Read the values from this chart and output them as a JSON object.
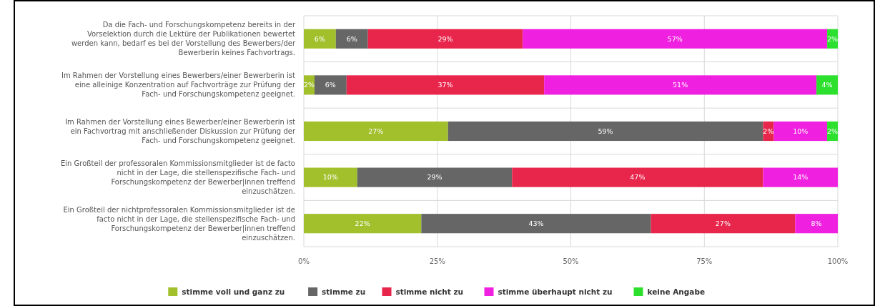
{
  "chart_data": {
    "type": "bar",
    "orientation": "horizontal",
    "stacked": true,
    "categories": [
      "Da die Fach- und Forschungskompetenz bereits in der Vorselektion durch die Lektüre der Publikationen bewertet werden kann, bedarf es bei der Vorstellung des Bewerbers/der Bewerberin keines Fachvortrags.",
      "Im Rahmen der Vorstellung eines Bewerbers/einer Bewerberin ist eine alleinige Konzentration auf Fachvorträge zur Prüfung der Fach- und Forschungskompetenz geeignet.",
      "Im Rahmen der Vorstellung eines Bewerber/einer Bewerberin ist ein Fachvortrag mit anschließender Diskussion zur Prüfung der Fach- und Forschungskompetenz geeignet.",
      "Ein Großteil der professoralen Kommissionsmitglieder ist de facto nicht in der Lage, die stellenspezifische Fach- und Forschungskompetenz der Bewerber|innen treffend einzuschätzen.",
      "Ein Großteil der nichtprofessoralen Kommissionsmitglieder ist de facto nicht in der Lage, die stellenspezifische Fach- und Forschungskompetenz der Bewerber|innen treffend einzuschätzen."
    ],
    "series": [
      {
        "name": "stimme voll und ganz zu",
        "color": "#a2c02c",
        "values": [
          6,
          2,
          27,
          10,
          22
        ],
        "value_labels": [
          "6%",
          "2%",
          "27%",
          "10%",
          "22%"
        ]
      },
      {
        "name": "stimme zu",
        "color": "#666666",
        "values": [
          6,
          6,
          59,
          29,
          43
        ],
        "value_labels": [
          "6%",
          "6%",
          "59%",
          "29%",
          "43%"
        ]
      },
      {
        "name": "stimme nicht zu",
        "color": "#e8254a",
        "values": [
          29,
          37,
          2,
          47,
          27
        ],
        "value_labels": [
          "29%",
          "37%",
          "2%",
          "47%",
          "27%"
        ]
      },
      {
        "name": "stimme überhaupt nicht zu",
        "color": "#f020e0",
        "values": [
          57,
          51,
          10,
          14,
          8
        ],
        "value_labels": [
          "57%",
          "51%",
          "10%",
          "14%",
          "8%"
        ]
      },
      {
        "name": "keine Angabe",
        "color": "#2ee02e",
        "values": [
          2,
          4,
          2,
          null,
          null
        ],
        "value_labels": [
          "2%",
          "4%",
          "2%",
          null,
          null
        ]
      }
    ],
    "xlim": [
      0,
      100
    ],
    "xticks": [
      {
        "value": 0,
        "label": "0%"
      },
      {
        "value": 25,
        "label": "25%"
      },
      {
        "value": 50,
        "label": "50%"
      },
      {
        "value": 75,
        "label": "75%"
      },
      {
        "value": 100,
        "label": "100%"
      }
    ],
    "grid": true,
    "legend": "bottom"
  }
}
